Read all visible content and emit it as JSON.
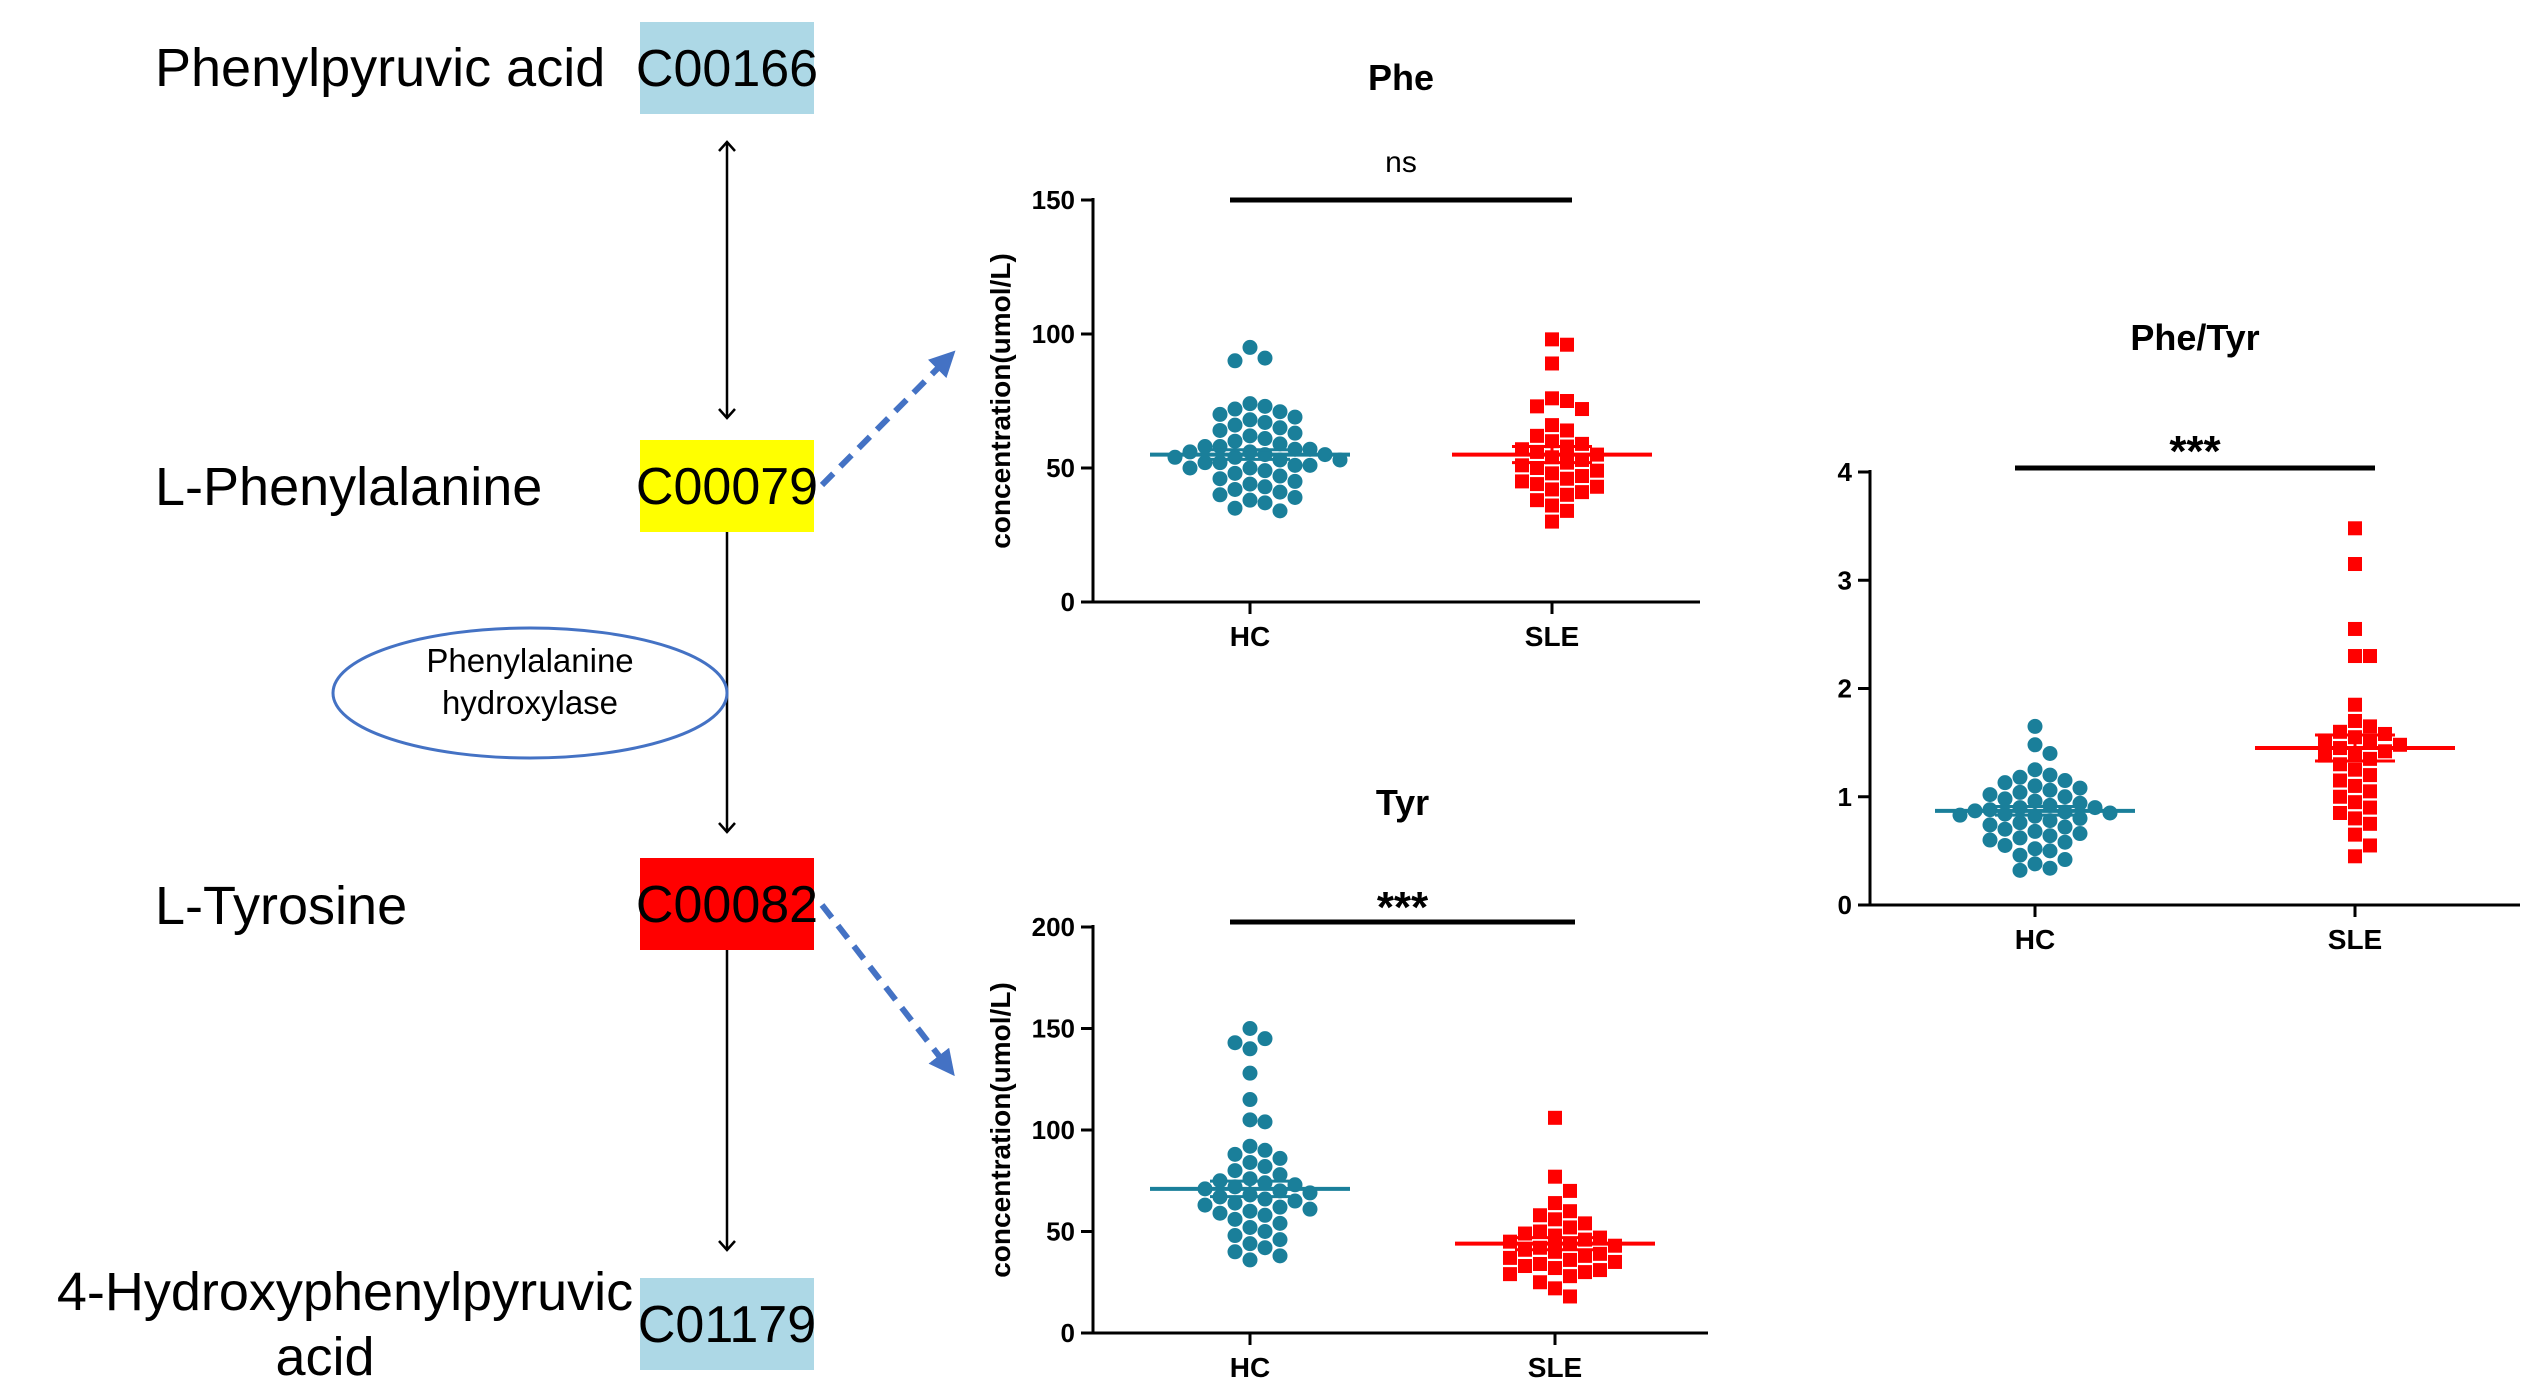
{
  "pathway": {
    "compounds": [
      {
        "name": "Phenylpyruvic acid",
        "id": "C00166",
        "color": "#add8e6"
      },
      {
        "name": "L-Phenylalanine",
        "id": "C00079",
        "color": "#ffff00"
      },
      {
        "name": "L-Tyrosine",
        "id": "C00082",
        "color": "#ff0000"
      },
      {
        "name_line1": "4-Hydroxyphenylpyruvic",
        "name_line2": "acid",
        "id": "C01179",
        "color": "#add8e6"
      }
    ],
    "enzyme": {
      "line1": "Phenylalanine",
      "line2": "hydroxylase",
      "color": "#4472c4"
    },
    "link_color": "#4472c4"
  },
  "chart_data": [
    {
      "type": "scatter",
      "id": "phe",
      "title": "Phe",
      "ylabel": "concentration(umol/L)",
      "xlabel": "",
      "categories": [
        "HC",
        "SLE"
      ],
      "ylim": [
        0,
        150
      ],
      "yticks": [
        0,
        50,
        100,
        150
      ],
      "significance": "ns",
      "series": [
        {
          "name": "HC",
          "color": "#1a7f9a",
          "marker": "circle",
          "values": [
            95,
            91,
            90,
            74,
            73,
            72,
            71,
            70,
            69,
            68,
            67,
            66,
            65,
            64,
            63,
            62,
            61,
            60,
            59,
            58,
            58,
            57,
            57,
            56,
            56,
            55,
            55,
            54,
            54,
            53,
            53,
            52,
            52,
            51,
            51,
            50,
            50,
            49,
            48,
            47,
            46,
            45,
            44,
            43,
            42,
            41,
            40,
            39,
            38,
            37,
            35,
            34
          ],
          "mean": 55,
          "sem": 1.8
        },
        {
          "name": "SLE",
          "color": "#ff0000",
          "marker": "square",
          "values": [
            98,
            96,
            89,
            76,
            75,
            73,
            72,
            66,
            64,
            62,
            60,
            59,
            58,
            57,
            56,
            55,
            54,
            53,
            52,
            51,
            50,
            49,
            48,
            47,
            46,
            45,
            44,
            43,
            42,
            41,
            40,
            38,
            36,
            34,
            30
          ],
          "mean": 55,
          "sem": 3.0
        }
      ]
    },
    {
      "type": "scatter",
      "id": "tyr",
      "title": "Tyr",
      "ylabel": "concentration(umol/L)",
      "xlabel": "",
      "categories": [
        "HC",
        "SLE"
      ],
      "ylim": [
        0,
        200
      ],
      "yticks": [
        0,
        50,
        100,
        150,
        200
      ],
      "significance": "***",
      "series": [
        {
          "name": "HC",
          "color": "#1a7f9a",
          "marker": "circle",
          "values": [
            150,
            145,
            143,
            140,
            128,
            115,
            105,
            104,
            92,
            90,
            88,
            86,
            84,
            82,
            80,
            78,
            76,
            75,
            74,
            73,
            72,
            71,
            70,
            69,
            68,
            67,
            66,
            65,
            64,
            63,
            62,
            61,
            60,
            59,
            58,
            56,
            54,
            52,
            50,
            48,
            46,
            44,
            42,
            40,
            38,
            36
          ],
          "mean": 71,
          "sem": 3.8
        },
        {
          "name": "SLE",
          "color": "#ff0000",
          "marker": "square",
          "values": [
            106,
            77,
            70,
            64,
            60,
            58,
            56,
            54,
            52,
            50,
            49,
            48,
            47,
            46,
            45,
            44,
            43,
            42,
            41,
            40,
            39,
            38,
            37,
            36,
            35,
            34,
            33,
            32,
            31,
            30,
            29,
            28,
            25,
            22,
            18
          ],
          "mean": 44,
          "sem": 3.0
        }
      ]
    },
    {
      "type": "scatter",
      "id": "phetyr",
      "title": "Phe/Tyr",
      "ylabel": "",
      "xlabel": "",
      "categories": [
        "HC",
        "SLE"
      ],
      "ylim": [
        0,
        4
      ],
      "yticks": [
        0,
        1,
        2,
        3,
        4
      ],
      "significance": "***",
      "series": [
        {
          "name": "HC",
          "color": "#1a7f9a",
          "marker": "circle",
          "values": [
            1.65,
            1.48,
            1.4,
            1.25,
            1.2,
            1.18,
            1.15,
            1.13,
            1.1,
            1.08,
            1.06,
            1.04,
            1.02,
            1.0,
            0.98,
            0.96,
            0.94,
            0.92,
            0.9,
            0.9,
            0.88,
            0.87,
            0.86,
            0.85,
            0.84,
            0.83,
            0.82,
            0.8,
            0.78,
            0.76,
            0.74,
            0.72,
            0.7,
            0.68,
            0.66,
            0.64,
            0.62,
            0.6,
            0.58,
            0.55,
            0.52,
            0.5,
            0.46,
            0.42,
            0.38,
            0.34,
            0.32
          ],
          "mean": 0.87,
          "sem": 0.04
        },
        {
          "name": "SLE",
          "color": "#ff0000",
          "marker": "square",
          "values": [
            3.48,
            3.15,
            2.55,
            2.3,
            2.3,
            1.85,
            1.7,
            1.65,
            1.6,
            1.58,
            1.55,
            1.52,
            1.5,
            1.48,
            1.45,
            1.42,
            1.4,
            1.38,
            1.35,
            1.3,
            1.25,
            1.2,
            1.15,
            1.1,
            1.05,
            1.0,
            0.95,
            0.9,
            0.85,
            0.8,
            0.75,
            0.65,
            0.55,
            0.45
          ],
          "mean": 1.45,
          "sem": 0.12
        }
      ]
    }
  ]
}
